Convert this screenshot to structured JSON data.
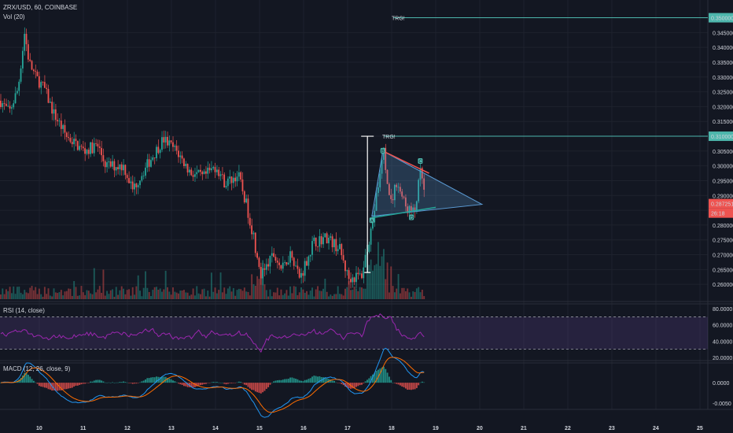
{
  "header": {
    "symbol": "ZRX/USD, 60, COINBASE",
    "vol_label": "Vol (20)"
  },
  "rsi_panel": {
    "label": "RSI (14, close)",
    "ticks": [
      "80.0000",
      "60.0000",
      "40.0000",
      "20.0000"
    ]
  },
  "macd_panel": {
    "label": "MACD (12, 26, close, 9)",
    "ticks": [
      "0.0000",
      "-0.0050"
    ]
  },
  "target_labels": [
    "TRG!",
    "TRG!"
  ],
  "pattern_labels": [
    "B",
    "C",
    "D",
    "A"
  ],
  "price_tags": {
    "upper": "0.350000",
    "mid": "0.310000",
    "last": "0.287251",
    "countdown": "26:18"
  },
  "colors": {
    "background": "#131722",
    "up": "#26a69a",
    "down": "#ef5350",
    "target_line": "#4db6ac",
    "triangle": "#5b9bd5",
    "rsi_line": "#9c27b0",
    "macd_line": "#2196f3",
    "signal_line": "#ff6d00"
  },
  "chart_data": [
    {
      "type": "candlestick",
      "title": "ZRX/USD, 60, COINBASE",
      "xlabel": "",
      "ylabel": "",
      "ylim": [
        0.255,
        0.352
      ],
      "y_ticks": [
        0.345,
        0.34,
        0.335,
        0.33,
        0.325,
        0.32,
        0.315,
        0.31,
        0.305,
        0.3,
        0.295,
        0.29,
        0.285,
        0.28,
        0.275,
        0.27,
        0.265,
        0.26
      ],
      "x_ticks": [
        "10",
        "11",
        "12",
        "13",
        "14",
        "15",
        "16",
        "17",
        "18",
        "19",
        "20",
        "21",
        "22",
        "23",
        "24",
        "25"
      ],
      "price_path": [
        {
          "day": 9.1,
          "price": 0.322
        },
        {
          "day": 9.3,
          "price": 0.318
        },
        {
          "day": 9.5,
          "price": 0.326
        },
        {
          "day": 9.65,
          "price": 0.345
        },
        {
          "day": 9.75,
          "price": 0.335
        },
        {
          "day": 9.9,
          "price": 0.33
        },
        {
          "day": 10.1,
          "price": 0.326
        },
        {
          "day": 10.3,
          "price": 0.318
        },
        {
          "day": 10.6,
          "price": 0.31
        },
        {
          "day": 11.0,
          "price": 0.305
        },
        {
          "day": 11.3,
          "price": 0.307
        },
        {
          "day": 11.5,
          "price": 0.3
        },
        {
          "day": 11.9,
          "price": 0.3
        },
        {
          "day": 12.1,
          "price": 0.292
        },
        {
          "day": 12.5,
          "price": 0.302
        },
        {
          "day": 12.8,
          "price": 0.309
        },
        {
          "day": 13.1,
          "price": 0.305
        },
        {
          "day": 13.4,
          "price": 0.298
        },
        {
          "day": 13.7,
          "price": 0.296
        },
        {
          "day": 14.0,
          "price": 0.3
        },
        {
          "day": 14.2,
          "price": 0.294
        },
        {
          "day": 14.5,
          "price": 0.297
        },
        {
          "day": 14.7,
          "price": 0.286
        },
        {
          "day": 14.85,
          "price": 0.276
        },
        {
          "day": 15.0,
          "price": 0.262
        },
        {
          "day": 15.3,
          "price": 0.27
        },
        {
          "day": 15.5,
          "price": 0.265
        },
        {
          "day": 15.7,
          "price": 0.271
        },
        {
          "day": 15.9,
          "price": 0.262
        },
        {
          "day": 16.2,
          "price": 0.274
        },
        {
          "day": 16.5,
          "price": 0.276
        },
        {
          "day": 16.8,
          "price": 0.272
        },
        {
          "day": 17.0,
          "price": 0.262
        },
        {
          "day": 17.3,
          "price": 0.263
        },
        {
          "day": 17.55,
          "price": 0.281
        },
        {
          "day": 17.8,
          "price": 0.305
        },
        {
          "day": 17.95,
          "price": 0.286
        },
        {
          "day": 18.1,
          "price": 0.295
        },
        {
          "day": 18.3,
          "price": 0.286
        },
        {
          "day": 18.5,
          "price": 0.284
        },
        {
          "day": 18.65,
          "price": 0.299
        },
        {
          "day": 18.75,
          "price": 0.287
        }
      ],
      "horizontal_levels": [
        0.35,
        0.31
      ],
      "triangle": {
        "apex": [
          17.8,
          0.305
        ],
        "bottom": [
          17.55,
          0.283
        ],
        "tip": [
          20.05,
          0.287
        ]
      },
      "measure_line": {
        "day": 17.45,
        "from": 0.264,
        "to": 0.31
      },
      "last_price": 0.287251
    },
    {
      "type": "bar",
      "title": "Vol (20)",
      "note": "volume histogram, relative heights"
    },
    {
      "type": "line",
      "title": "RSI (14, close)",
      "ylim": [
        18,
        84
      ],
      "bands": [
        70,
        30
      ],
      "y_ticks": [
        80,
        60,
        40,
        20
      ]
    },
    {
      "type": "line",
      "title": "MACD (12, 26, close, 9)",
      "ylim": [
        -0.0062,
        0.0045
      ],
      "y_ticks": [
        0.0,
        -0.005
      ]
    }
  ]
}
